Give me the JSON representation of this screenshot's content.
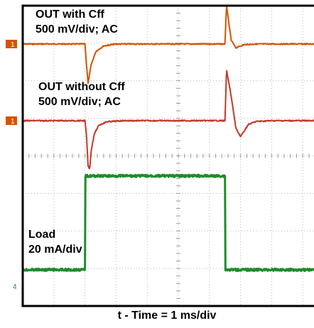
{
  "chart_data": {
    "type": "line",
    "title": "",
    "xlabel": "t - Time = 1 ms/div",
    "ylabel": "",
    "grid": true,
    "xlim": [
      0,
      10
    ],
    "x_divisions": 10,
    "y_divisions": 8,
    "channel_markers": [
      {
        "label": "1",
        "trace": "out_with_cff"
      },
      {
        "label": "1",
        "trace": "out_without_cff"
      },
      {
        "label": "4",
        "trace": "load"
      }
    ],
    "trace_labels": [
      {
        "id": "out_with_cff",
        "line1": "OUT with Cff",
        "line2": "500 mV/div; AC",
        "color": "#d35400"
      },
      {
        "id": "out_without_cff",
        "line1": "OUT without Cff",
        "line2": "500 mV/div; AC",
        "color": "#c0392b"
      },
      {
        "id": "load",
        "line1": "Load",
        "line2": "20 mA/div",
        "color": "#1e8c2a"
      }
    ],
    "series": [
      {
        "id": "out_with_cff",
        "units": "div",
        "x": [
          0,
          1.95,
          2.0,
          2.05,
          2.1,
          2.2,
          2.35,
          2.6,
          3.0,
          4.0,
          6.0,
          6.45,
          6.5,
          6.55,
          6.6,
          6.7,
          6.85,
          7.1,
          7.5,
          8.5,
          10
        ],
        "values": [
          0,
          0,
          0,
          -0.55,
          -1.05,
          -0.55,
          -0.2,
          -0.05,
          0,
          0,
          0,
          0,
          0,
          1.05,
          0.7,
          0.1,
          -0.1,
          -0.02,
          0,
          0,
          0
        ]
      },
      {
        "id": "out_without_cff",
        "units": "div",
        "x": [
          0,
          1.95,
          2.0,
          2.05,
          2.1,
          2.15,
          2.2,
          2.3,
          2.45,
          2.7,
          3.2,
          4.0,
          6.0,
          6.45,
          6.5,
          6.55,
          6.7,
          6.85,
          7.0,
          7.1,
          7.25,
          7.5,
          8.0,
          10
        ],
        "values": [
          0,
          0,
          0,
          -0.4,
          -1.2,
          -1.3,
          -0.8,
          -0.35,
          -0.12,
          -0.03,
          0,
          0,
          0,
          0,
          0,
          1.35,
          0.65,
          -0.2,
          -0.42,
          -0.3,
          -0.1,
          -0.02,
          0,
          0
        ]
      },
      {
        "id": "load",
        "units": "div",
        "x": [
          0,
          2.0,
          2.0,
          6.5,
          6.5,
          10
        ],
        "values": [
          0,
          0,
          2.5,
          2.5,
          0,
          0
        ]
      }
    ]
  }
}
